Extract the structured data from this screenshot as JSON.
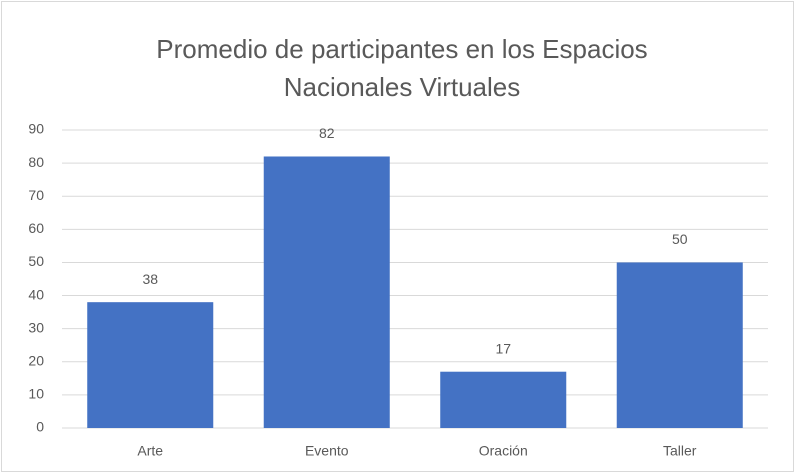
{
  "chart_data": {
    "type": "bar",
    "title": "Promedio de participantes en los Espacios Nacionales Virtuales",
    "categories": [
      "Arte",
      "Evento",
      "Oración",
      "Taller"
    ],
    "values": [
      38,
      82,
      17,
      50
    ],
    "color": "#4472c4",
    "ylim": [
      0,
      90
    ],
    "yticks": [
      0,
      10,
      20,
      30,
      40,
      50,
      60,
      70,
      80,
      90
    ],
    "grid": true
  }
}
